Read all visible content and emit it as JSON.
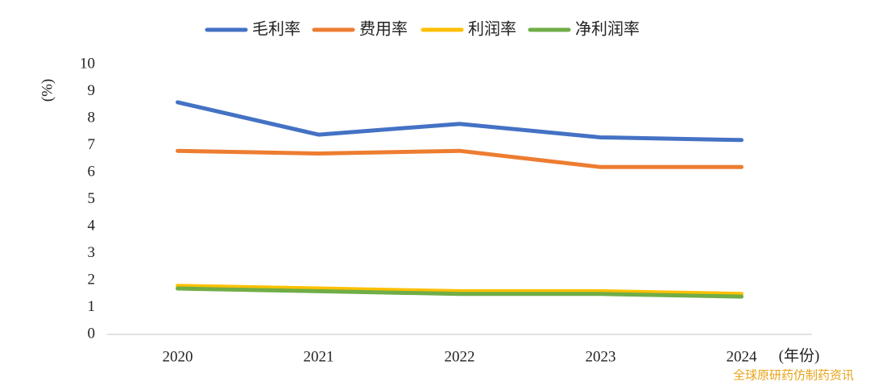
{
  "chart_data": {
    "type": "line",
    "y_label": "(%)",
    "x_label": "(年份)",
    "categories": [
      "2020",
      "2021",
      "2022",
      "2023",
      "2024"
    ],
    "series": [
      {
        "name": "毛利率",
        "color": "#4472c4",
        "values": [
          8.6,
          7.4,
          7.8,
          7.3,
          7.2
        ]
      },
      {
        "name": "费用率",
        "color": "#ed7d31",
        "values": [
          6.8,
          6.7,
          6.8,
          6.2,
          6.2
        ]
      },
      {
        "name": "利润率",
        "color": "#ffc000",
        "values": [
          1.8,
          1.7,
          1.6,
          1.6,
          1.5
        ]
      },
      {
        "name": "净利润率",
        "color": "#70ad47",
        "values": [
          1.7,
          1.6,
          1.5,
          1.5,
          1.4
        ]
      }
    ],
    "ylim": [
      0,
      10
    ],
    "yticks": [
      0,
      1,
      2,
      3,
      4,
      5,
      6,
      7,
      8,
      9,
      10
    ],
    "legend": "top",
    "grid": false,
    "watermark": "全球原研药仿制药资讯"
  }
}
